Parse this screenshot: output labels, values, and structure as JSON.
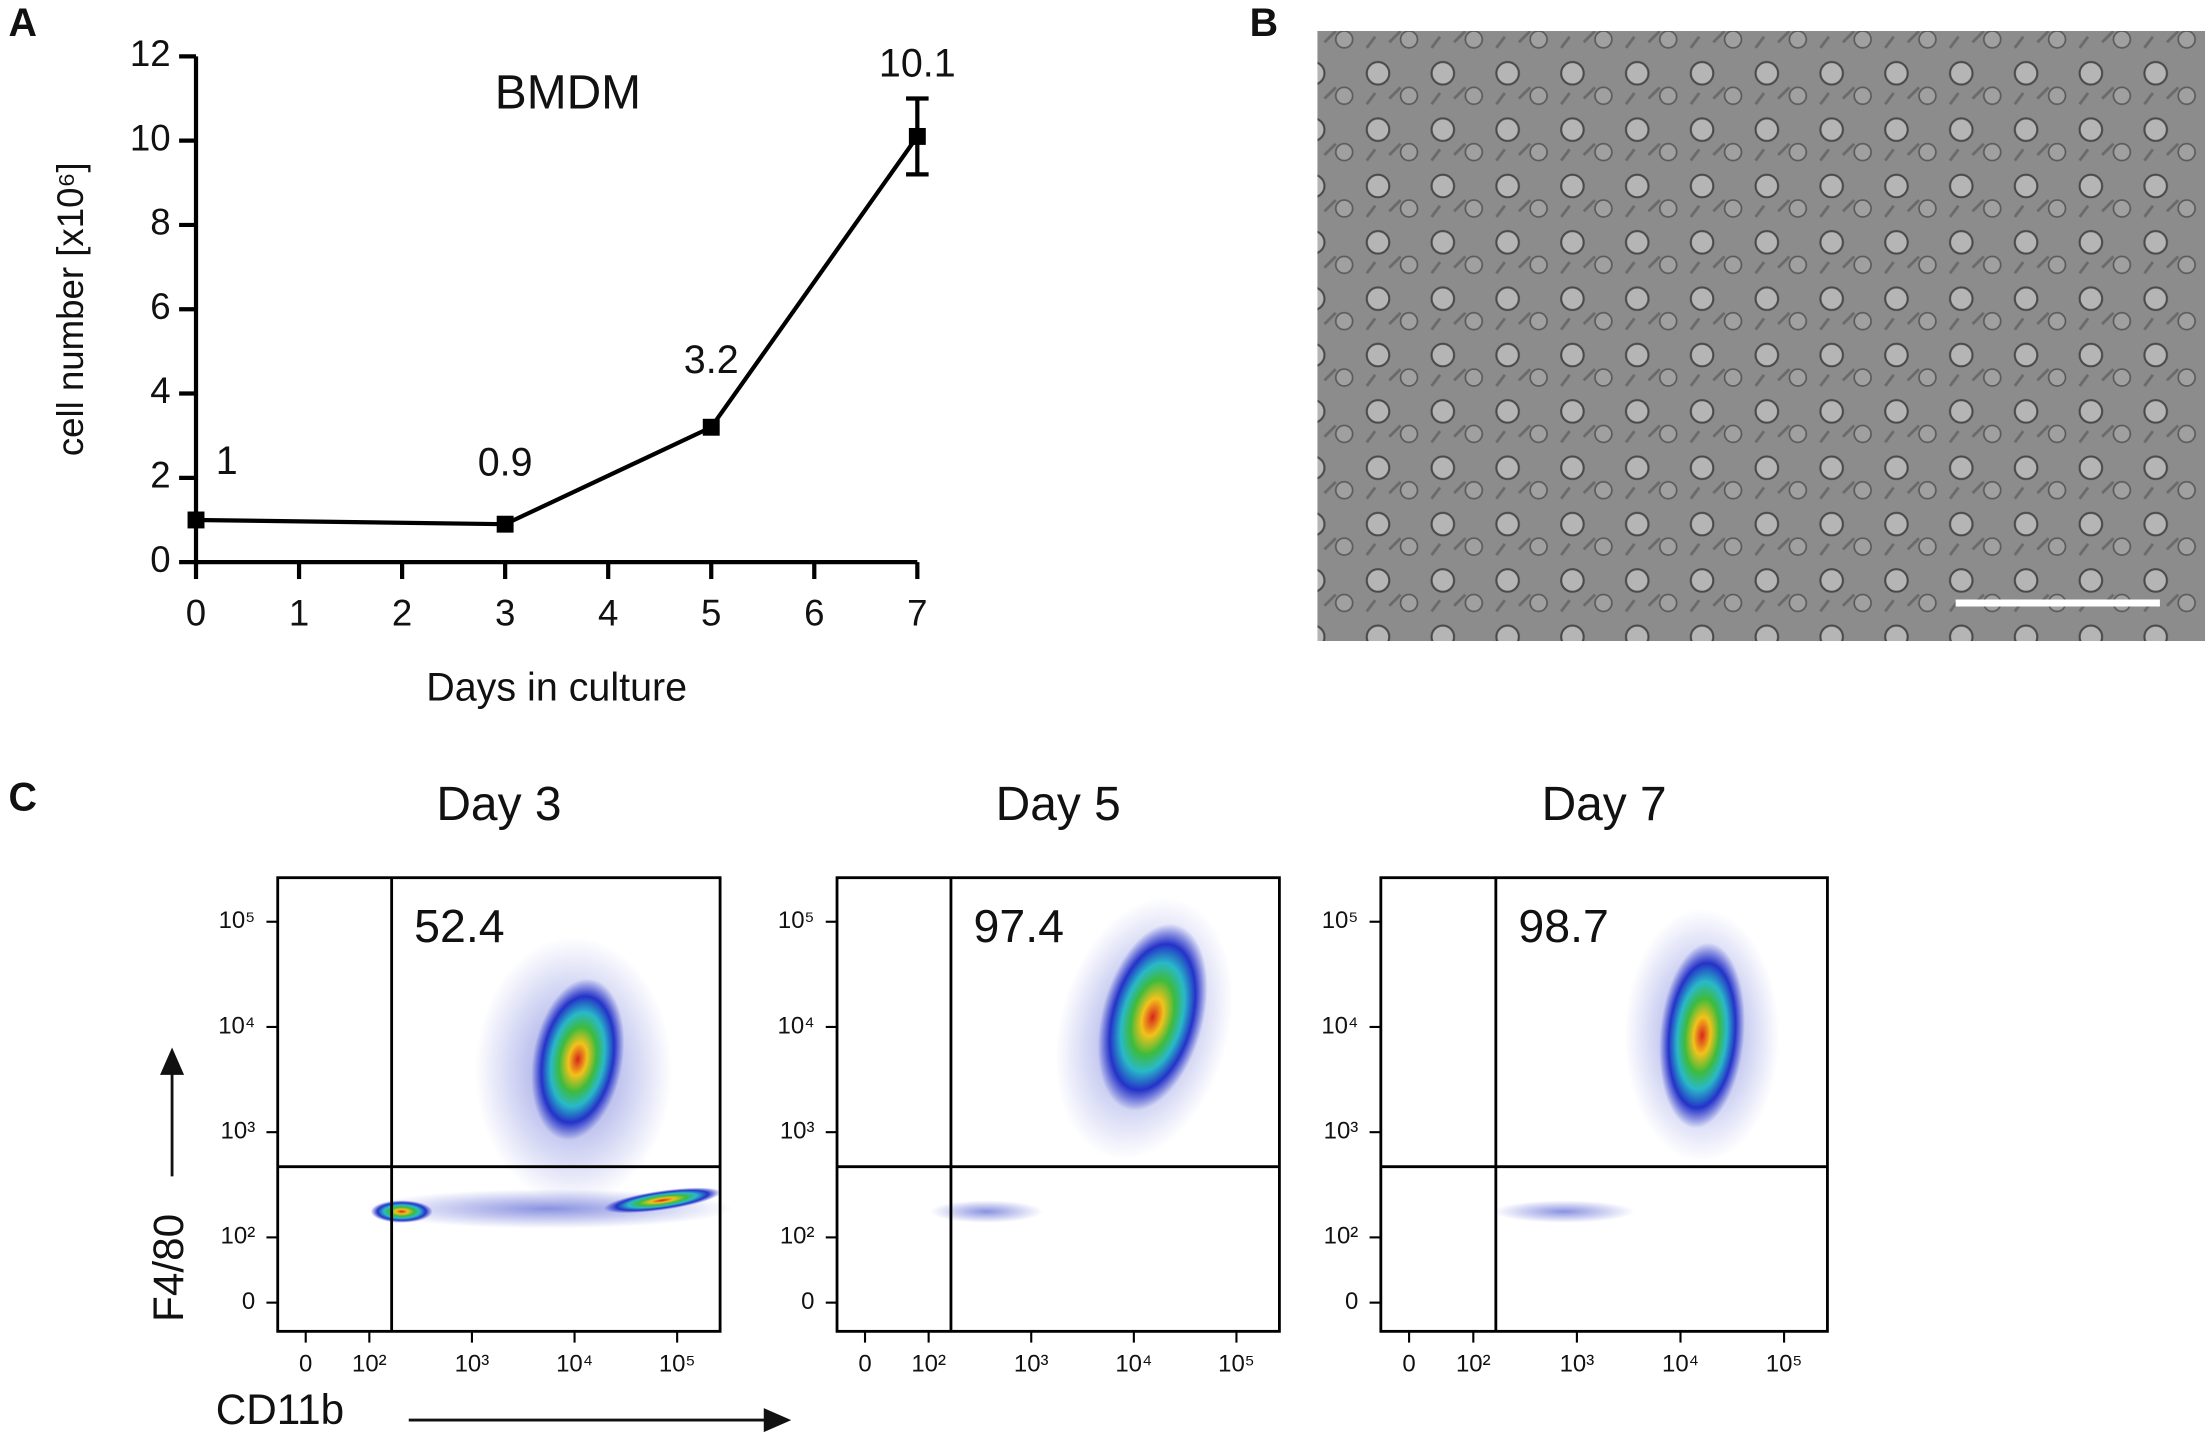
{
  "panels": [
    "A",
    "B",
    "C"
  ],
  "chart_data": [
    {
      "type": "line",
      "title": "BMDM",
      "xlabel": "Days in culture",
      "ylabel": "cell number [x10⁶]",
      "x": [
        0,
        3,
        5,
        7
      ],
      "values": [
        1,
        0.9,
        3.2,
        10.1
      ],
      "errors": [
        null,
        null,
        null,
        0.9
      ],
      "color": "#000000",
      "xlim": [
        0,
        7
      ],
      "xticks": [
        0,
        1,
        2,
        3,
        4,
        5,
        6,
        7
      ],
      "ylim": [
        0,
        12
      ],
      "yticks": [
        0,
        2,
        4,
        6,
        8,
        10,
        12
      ]
    },
    {
      "type": "flow",
      "title": "Day 3",
      "annotation": "52.4",
      "xlabel": "CD11b",
      "ylabel": "F4/80",
      "scale": "biexponential",
      "gate": {
        "x": 165,
        "y": 470
      },
      "xlim": [
        -44,
        262144
      ],
      "ylim": [
        -44,
        262144
      ],
      "xticks": [
        0,
        {
          "value": 100,
          "label": "10²"
        },
        {
          "value": 1000,
          "label": "10³"
        },
        {
          "value": 10000,
          "label": "10⁴"
        },
        {
          "value": 100000,
          "label": "10⁵"
        }
      ],
      "yticks": [
        0,
        {
          "value": 100,
          "label": "10²"
        },
        {
          "value": 1000,
          "label": "10³"
        },
        {
          "value": 10000,
          "label": "10⁴"
        },
        {
          "value": 100000,
          "label": "10⁵"
        }
      ]
    },
    {
      "type": "flow",
      "title": "Day 5",
      "annotation": "97.4",
      "scale": "biexponential",
      "gate": {
        "x": 165,
        "y": 470
      },
      "xlim": [
        -44,
        262144
      ],
      "ylim": [
        -44,
        262144
      ],
      "xticks": [
        0,
        {
          "value": 100,
          "label": "10²"
        },
        {
          "value": 1000,
          "label": "10³"
        },
        {
          "value": 10000,
          "label": "10⁴"
        },
        {
          "value": 100000,
          "label": "10⁵"
        }
      ],
      "yticks": [
        0,
        {
          "value": 100,
          "label": "10²"
        },
        {
          "value": 1000,
          "label": "10³"
        },
        {
          "value": 10000,
          "label": "10⁴"
        },
        {
          "value": 100000,
          "label": "10⁵"
        }
      ]
    },
    {
      "type": "flow",
      "title": "Day 7",
      "annotation": "98.7",
      "scale": "biexponential",
      "gate": {
        "x": 165,
        "y": 470
      },
      "xlim": [
        -44,
        262144
      ],
      "ylim": [
        -44,
        262144
      ],
      "xticks": [
        0,
        {
          "value": 100,
          "label": "10²"
        },
        {
          "value": 1000,
          "label": "10³"
        },
        {
          "value": 10000,
          "label": "10⁴"
        },
        {
          "value": 100000,
          "label": "10⁵"
        }
      ],
      "yticks": [
        0,
        {
          "value": 100,
          "label": "10²"
        },
        {
          "value": 1000,
          "label": "10³"
        },
        {
          "value": 10000,
          "label": "10⁴"
        },
        {
          "value": 100000,
          "label": "10⁵"
        }
      ]
    }
  ]
}
